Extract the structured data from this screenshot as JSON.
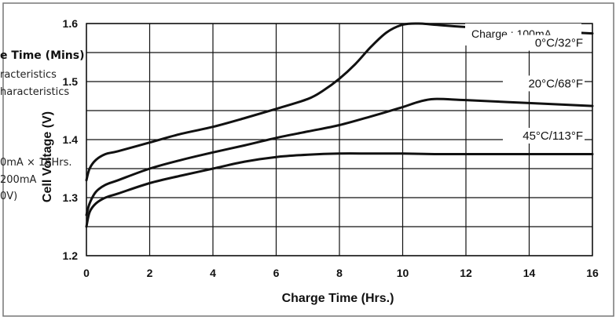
{
  "chart_data": {
    "type": "line",
    "title": "",
    "xlabel": "Charge Time (Hrs.)",
    "ylabel": "Cell Voltage (V)",
    "xlim": [
      0,
      16
    ],
    "ylim": [
      1.2,
      1.6
    ],
    "x_ticks": [
      "0",
      "2",
      "4",
      "6",
      "8",
      "10",
      "12",
      "14",
      "16"
    ],
    "y_ticks": [
      "1.2",
      "1.3",
      "1.4",
      "1.5",
      "1.6"
    ],
    "grid": true,
    "annotation": "Charge : 100mA",
    "series": [
      {
        "name": "0°C/32°F",
        "x": [
          0,
          0.1,
          0.3,
          0.6,
          1,
          2,
          3,
          4,
          5,
          6,
          7,
          7.5,
          8,
          8.5,
          9,
          9.5,
          10,
          10.5,
          11,
          12,
          14,
          16
        ],
        "y": [
          1.33,
          1.35,
          1.365,
          1.375,
          1.38,
          1.395,
          1.41,
          1.422,
          1.437,
          1.453,
          1.47,
          1.485,
          1.505,
          1.53,
          1.56,
          1.585,
          1.598,
          1.6,
          1.598,
          1.594,
          1.588,
          1.583
        ]
      },
      {
        "name": "20°C/68°F",
        "x": [
          0,
          0.1,
          0.3,
          0.6,
          1,
          2,
          3,
          4,
          5,
          6,
          7,
          8,
          9,
          10,
          10.5,
          11,
          12,
          14,
          16
        ],
        "y": [
          1.27,
          1.29,
          1.31,
          1.322,
          1.33,
          1.35,
          1.365,
          1.378,
          1.39,
          1.403,
          1.414,
          1.425,
          1.44,
          1.456,
          1.465,
          1.47,
          1.468,
          1.463,
          1.458
        ]
      },
      {
        "name": "45°C/113°F",
        "x": [
          0,
          0.1,
          0.3,
          0.6,
          1,
          2,
          3,
          4,
          5,
          6,
          7,
          8,
          9,
          10,
          11,
          12,
          14,
          16
        ],
        "y": [
          1.25,
          1.275,
          1.29,
          1.3,
          1.307,
          1.325,
          1.338,
          1.35,
          1.362,
          1.37,
          1.374,
          1.376,
          1.376,
          1.376,
          1.375,
          1.375,
          1.375,
          1.375
        ]
      }
    ]
  },
  "stray_text": {
    "line1": "e Time (Mins)",
    "line2": "racteristics",
    "line3": "haracteristics",
    "line4": "0mA × 16Hrs.",
    "line5": "200mA",
    "line6": "0V)"
  }
}
